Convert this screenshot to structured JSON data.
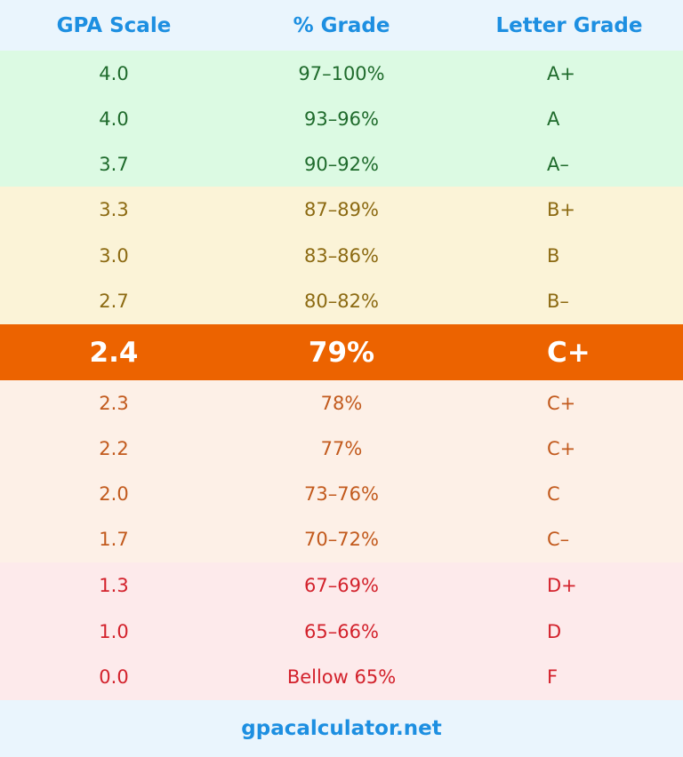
{
  "header": {
    "columns": [
      "GPA Scale",
      "% Grade",
      "Letter Grade"
    ]
  },
  "table": {
    "sections": [
      {
        "rows": [
          [
            "4.0",
            "97–100%",
            "A+"
          ],
          [
            "4.0",
            "93–96%",
            "A"
          ],
          [
            "3.7",
            "90–92%",
            "A–"
          ]
        ]
      },
      {
        "rows": [
          [
            "3.3",
            "87–89%",
            "B+"
          ],
          [
            "3.0",
            "83–86%",
            "B"
          ],
          [
            "2.7",
            "80–82%",
            "B–"
          ]
        ]
      },
      {
        "rows": [
          [
            "2.4",
            "79%",
            "C+"
          ]
        ]
      },
      {
        "rows": [
          [
            "2.3",
            "78%",
            "C+"
          ],
          [
            "2.2",
            "77%",
            "C+"
          ],
          [
            "2.0",
            "73–76%",
            "C"
          ],
          [
            "1.7",
            "70–72%",
            "C–"
          ]
        ]
      },
      {
        "rows": [
          [
            "1.3",
            "67–69%",
            "D+"
          ],
          [
            "1.0",
            "65–66%",
            "D"
          ],
          [
            "0.0",
            "Bellow 65%",
            "F"
          ]
        ]
      }
    ]
  },
  "footer": {
    "site": "gpacalculator.net"
  }
}
